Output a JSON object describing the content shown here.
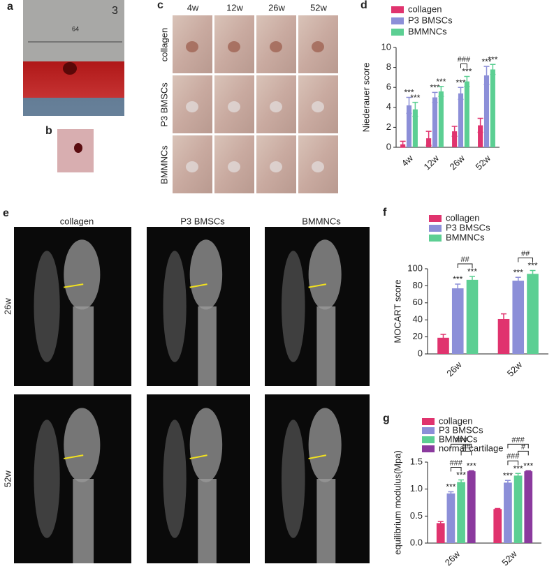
{
  "panel_labels": [
    "a",
    "b",
    "c",
    "d",
    "e",
    "f",
    "g"
  ],
  "panel_a": {
    "ruler_texts": [
      "64",
      "3"
    ]
  },
  "panel_c": {
    "columns": [
      "4w",
      "12w",
      "26w",
      "52w"
    ],
    "rows": [
      "collagen",
      "P3 BMSCs",
      "BMMNCs"
    ]
  },
  "panel_e": {
    "columns": [
      "collagen",
      "P3 BMSCs",
      "BMMNCs"
    ],
    "rows": [
      "26w",
      "52w"
    ]
  },
  "chart_data": [
    {
      "type": "bar",
      "ylabel": "Niederauer score",
      "categories": [
        "4w",
        "12w",
        "26w",
        "52w"
      ],
      "series": [
        {
          "name": "collagen",
          "color": "#e0336e",
          "values": [
            0.3,
            0.9,
            1.6,
            2.2
          ],
          "errors": [
            0.3,
            0.7,
            0.5,
            0.7
          ]
        },
        {
          "name": "P3 BMSCs",
          "color": "#8c8fd8",
          "values": [
            4.2,
            5.0,
            5.4,
            7.2
          ],
          "errors": [
            0.8,
            0.5,
            0.6,
            0.9
          ],
          "significance": [
            "***",
            "***",
            "***",
            "***"
          ]
        },
        {
          "name": "BMMNCs",
          "color": "#5ccf93",
          "values": [
            3.8,
            5.6,
            6.6,
            7.8
          ],
          "errors": [
            0.7,
            0.5,
            0.5,
            0.5
          ],
          "significance": [
            "***",
            "***",
            "***",
            "***"
          ]
        }
      ],
      "brackets": [
        [],
        [],
        [
          {
            "label": "###",
            "series": [
              1,
              2
            ]
          }
        ],
        []
      ],
      "ylim": [
        0,
        10
      ],
      "yticks": [
        0,
        2,
        4,
        6,
        8,
        10
      ]
    },
    {
      "type": "bar",
      "ylabel": "MOCART score",
      "categories": [
        "26w",
        "52w"
      ],
      "series": [
        {
          "name": "collagen",
          "color": "#e0336e",
          "values": [
            19,
            41
          ],
          "errors": [
            4,
            6
          ]
        },
        {
          "name": "P3 BMSCs",
          "color": "#8c8fd8",
          "values": [
            77,
            86
          ],
          "errors": [
            5,
            4
          ],
          "significance": [
            "***",
            "***"
          ]
        },
        {
          "name": "BMMNCs",
          "color": "#5ccf93",
          "values": [
            87,
            94
          ],
          "errors": [
            4,
            4
          ],
          "significance": [
            "***",
            "***"
          ]
        }
      ],
      "brackets": [
        [
          {
            "label": "##",
            "series": [
              1,
              2
            ]
          }
        ],
        [
          {
            "label": "##",
            "series": [
              1,
              2
            ]
          }
        ]
      ],
      "ylim": [
        0,
        100
      ],
      "yticks": [
        0,
        20,
        40,
        60,
        80,
        100
      ]
    },
    {
      "type": "bar",
      "ylabel": "equilibrium modulus(Mpa)",
      "categories": [
        "26w",
        "52w"
      ],
      "series": [
        {
          "name": "collagen",
          "color": "#e0336e",
          "values": [
            0.37,
            0.63
          ],
          "errors": [
            0.03,
            0.01
          ]
        },
        {
          "name": "P3 BMSCs",
          "color": "#8c8fd8",
          "values": [
            0.92,
            1.12
          ],
          "errors": [
            0.03,
            0.04
          ],
          "significance": [
            "***",
            "***"
          ]
        },
        {
          "name": "BMMNCs",
          "color": "#5ccf93",
          "values": [
            1.13,
            1.25
          ],
          "errors": [
            0.04,
            0.04
          ],
          "significance": [
            "***",
            "***"
          ]
        },
        {
          "name": "normal cartilage",
          "color": "#8b3a9e",
          "values": [
            1.33,
            1.33
          ],
          "errors": [
            0.01,
            0.01
          ],
          "significance": [
            "***",
            "***"
          ]
        }
      ],
      "brackets": [
        [
          {
            "label": "###",
            "series": [
              1,
              2
            ]
          },
          {
            "label": "##",
            "series": [
              2,
              3
            ]
          },
          {
            "label": "###",
            "series": [
              1,
              3
            ]
          }
        ],
        [
          {
            "label": "###",
            "series": [
              1,
              2
            ]
          },
          {
            "label": "#",
            "series": [
              2,
              3
            ]
          },
          {
            "label": "###",
            "series": [
              1,
              3
            ]
          }
        ]
      ],
      "ylim": [
        0,
        1.5
      ],
      "yticks": [
        {
          "value": 0,
          "label": "0.0"
        },
        0.5,
        {
          "value": 1,
          "label": "1.0"
        },
        1.5
      ]
    }
  ]
}
